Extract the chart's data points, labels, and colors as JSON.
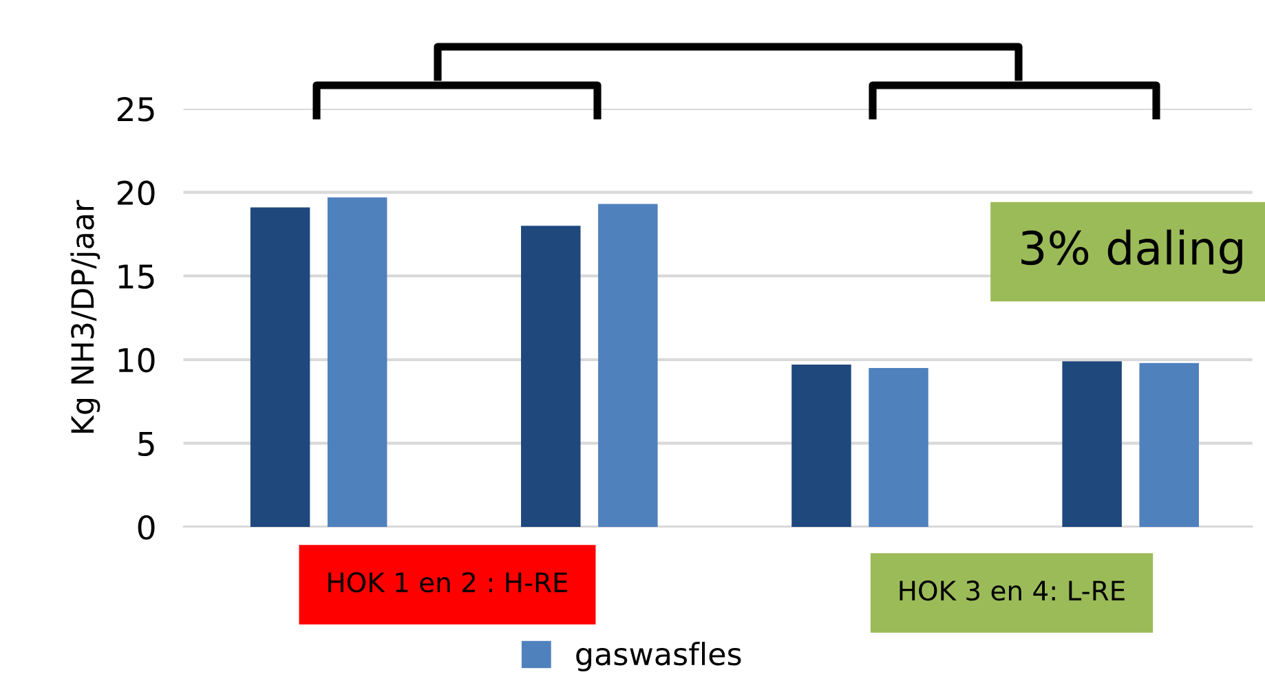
{
  "chart_data": {
    "type": "bar",
    "ylabel": "Kg NH3/DP/jaar",
    "categories": [
      null,
      null,
      null,
      null
    ],
    "series": [
      {
        "color": "#1f497d",
        "values": [
          19.1,
          18.0,
          9.7,
          9.9
        ]
      },
      {
        "name": "gaswasfles",
        "color": "#4f81bd",
        "values": [
          19.7,
          19.3,
          9.5,
          9.8
        ]
      }
    ],
    "ylim": [
      0,
      25
    ],
    "yticks": [
      0,
      5,
      10,
      15,
      20,
      25
    ],
    "grid": "y",
    "legend": "bottom",
    "annotations": [
      "HOK 1 en 2 : H-RE",
      "HOK 3 en 4: L-RE",
      "3% daling"
    ]
  }
}
